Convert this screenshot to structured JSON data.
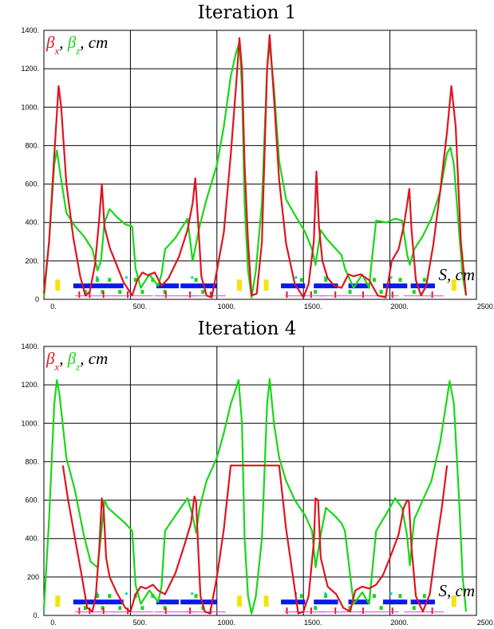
{
  "chart_data": [
    {
      "type": "line",
      "title": "Iteration 1",
      "legend_position": "top-left",
      "legend": {
        "beta_x": "β",
        "beta_x_sub": "x",
        "beta_z": "β",
        "beta_z_sub": "z",
        "sep": ",",
        "unit": ", cm"
      },
      "xlabel": "S, cm",
      "xlim": [
        0,
        2500
      ],
      "ylim": [
        0,
        1400
      ],
      "xticks": [
        "0.",
        "500.",
        "1000.",
        "1500.",
        "2000.",
        "2500."
      ],
      "yticks": [
        "0",
        "200.",
        "400.",
        "600.",
        "800.",
        "1000.",
        "1200.",
        "1400."
      ],
      "grid": true,
      "colors": {
        "beta_x": "#e0141e",
        "beta_z": "#16d816"
      },
      "series": [
        {
          "name": "βx",
          "x": [
            0,
            30,
            60,
            85,
            100,
            130,
            170,
            210,
            240,
            265,
            295,
            320,
            335,
            350,
            380,
            420,
            460,
            510,
            540,
            570,
            600,
            640,
            680,
            720,
            780,
            830,
            860,
            875,
            890,
            910,
            940,
            970,
            1000,
            1040,
            1080,
            1110,
            1130,
            1145,
            1160,
            1180,
            1200,
            1230,
            1260,
            1290,
            1305,
            1330,
            1360,
            1400,
            1450,
            1500,
            1530,
            1560,
            1575,
            1590,
            1610,
            1640,
            1680,
            1720,
            1760,
            1790,
            1830,
            1880,
            1930,
            1975,
            2010,
            2050,
            2080,
            2100,
            2112,
            2125,
            2150,
            2180,
            2210,
            2250,
            2290,
            2330,
            2355,
            2380,
            2410,
            2440
          ],
          "y": [
            30,
            300,
            750,
            1110,
            1000,
            600,
            320,
            120,
            20,
            40,
            180,
            420,
            600,
            380,
            270,
            180,
            90,
            20,
            100,
            140,
            125,
            140,
            70,
            110,
            220,
            360,
            500,
            630,
            420,
            120,
            20,
            10,
            150,
            350,
            750,
            1100,
            1360,
            1200,
            700,
            300,
            20,
            30,
            300,
            1200,
            1375,
            1050,
            620,
            290,
            80,
            10,
            80,
            300,
            665,
            380,
            200,
            110,
            70,
            60,
            130,
            120,
            130,
            100,
            20,
            10,
            200,
            260,
            380,
            500,
            575,
            360,
            100,
            20,
            70,
            280,
            560,
            870,
            1110,
            900,
            300,
            20
          ]
        },
        {
          "name": "βz",
          "x": [
            0,
            30,
            60,
            75,
            95,
            130,
            180,
            230,
            280,
            310,
            330,
            350,
            380,
            420,
            470,
            510,
            530,
            560,
            610,
            660,
            680,
            700,
            760,
            830,
            860,
            880,
            900,
            940,
            1000,
            1040,
            1080,
            1110,
            1130,
            1145,
            1160,
            1180,
            1200,
            1225,
            1260,
            1290,
            1305,
            1330,
            1360,
            1400,
            1450,
            1510,
            1550,
            1570,
            1600,
            1630,
            1680,
            1720,
            1740,
            1790,
            1840,
            1880,
            1890,
            1920,
            1980,
            2030,
            2070,
            2100,
            2115,
            2140,
            2190,
            2240,
            2290,
            2330,
            2350,
            2370,
            2400,
            2420,
            2440
          ],
          "y": [
            10,
            300,
            700,
            775,
            650,
            450,
            380,
            330,
            260,
            150,
            200,
            400,
            470,
            430,
            390,
            380,
            160,
            60,
            130,
            70,
            130,
            260,
            320,
            420,
            200,
            290,
            380,
            520,
            700,
            900,
            1160,
            1280,
            1340,
            1100,
            500,
            150,
            10,
            150,
            500,
            1200,
            1330,
            1100,
            720,
            520,
            440,
            350,
            260,
            180,
            360,
            320,
            270,
            230,
            160,
            60,
            130,
            60,
            160,
            410,
            400,
            420,
            410,
            230,
            180,
            260,
            330,
            420,
            560,
            760,
            790,
            700,
            350,
            120,
            20
          ]
        }
      ],
      "element_bars": {
        "colors": [
          "#0a1aee",
          "#f2e40e",
          "#16d816",
          "#e0141e",
          "#e040e0",
          "#00d0d0"
        ]
      }
    },
    {
      "type": "line",
      "title": "Iteration 4",
      "legend_position": "top-left",
      "legend": {
        "beta_x": "β",
        "beta_x_sub": "x",
        "beta_z": "β",
        "beta_z_sub": "z",
        "sep": ",",
        "unit": ", cm"
      },
      "xlabel": "S, cm",
      "xlim": [
        0,
        2500
      ],
      "ylim": [
        0,
        1400
      ],
      "xticks": [
        "0.",
        "500.",
        "1000.",
        "1500.",
        "2000.",
        "2500."
      ],
      "yticks": [
        "0.",
        "200",
        "400.",
        "600.",
        "800.",
        "1000.",
        "1200.",
        "1400."
      ],
      "grid": true,
      "colors": {
        "beta_x": "#e0141e",
        "beta_z": "#16d816"
      },
      "series": [
        {
          "name": "βx",
          "x": [
            110,
            140,
            180,
            220,
            250,
            280,
            300,
            320,
            335,
            345,
            360,
            380,
            420,
            470,
            500,
            530,
            560,
            590,
            630,
            660,
            700,
            760,
            810,
            850,
            870,
            880,
            890,
            905,
            930,
            960,
            1000,
            1040,
            1080,
            1360,
            1400,
            1440,
            1470,
            1500,
            1530,
            1560,
            1570,
            1585,
            1600,
            1640,
            1690,
            1730,
            1770,
            1800,
            1840,
            1880,
            1920,
            1960,
            2000,
            2050,
            2080,
            2100,
            2110,
            2125,
            2150,
            2190,
            2230,
            2270,
            2300,
            2330
          ],
          "y": [
            780,
            600,
            400,
            200,
            40,
            20,
            100,
            350,
            610,
            560,
            300,
            200,
            120,
            40,
            20,
            110,
            150,
            140,
            160,
            130,
            110,
            220,
            360,
            480,
            620,
            590,
            380,
            100,
            20,
            10,
            200,
            450,
            780,
            780,
            450,
            200,
            10,
            20,
            100,
            380,
            610,
            600,
            300,
            150,
            110,
            40,
            20,
            130,
            150,
            140,
            160,
            210,
            300,
            420,
            560,
            600,
            590,
            350,
            100,
            20,
            110,
            380,
            560,
            780
          ]
        },
        {
          "name": "βz",
          "x": [
            0,
            30,
            60,
            75,
            90,
            130,
            180,
            230,
            270,
            310,
            330,
            350,
            370,
            420,
            470,
            510,
            530,
            560,
            610,
            660,
            680,
            700,
            760,
            830,
            860,
            880,
            900,
            940,
            1000,
            1040,
            1080,
            1110,
            1125,
            1145,
            1160,
            1180,
            1200,
            1225,
            1260,
            1290,
            1305,
            1330,
            1360,
            1400,
            1450,
            1510,
            1550,
            1570,
            1600,
            1630,
            1680,
            1720,
            1740,
            1790,
            1840,
            1880,
            1890,
            1920,
            1980,
            2030,
            2070,
            2100,
            2115,
            2140,
            2190,
            2240,
            2290,
            2330,
            2345,
            2370,
            2400,
            2420,
            2440
          ],
          "y": [
            30,
            500,
            1100,
            1225,
            1150,
            820,
            650,
            420,
            280,
            250,
            410,
            600,
            560,
            520,
            480,
            440,
            160,
            60,
            130,
            70,
            150,
            440,
            520,
            610,
            520,
            430,
            560,
            700,
            820,
            950,
            1100,
            1180,
            1225,
            1000,
            400,
            100,
            10,
            100,
            400,
            1100,
            1230,
            1000,
            820,
            700,
            600,
            520,
            440,
            250,
            420,
            560,
            520,
            480,
            440,
            60,
            120,
            60,
            160,
            440,
            530,
            610,
            560,
            410,
            260,
            500,
            600,
            700,
            900,
            1130,
            1220,
            1100,
            600,
            200,
            20
          ]
        }
      ],
      "element_bars": {
        "colors": [
          "#0a1aee",
          "#f2e40e",
          "#16d816",
          "#e0141e",
          "#e040e0",
          "#00d0d0"
        ]
      }
    }
  ]
}
